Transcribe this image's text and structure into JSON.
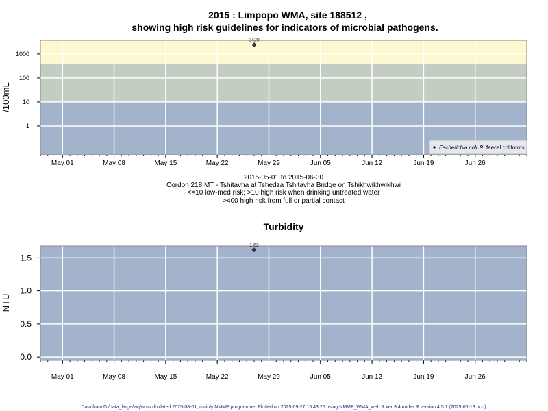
{
  "chart_data": [
    {
      "type": "scatter",
      "title": "2015 : Limpopo WMA, site 188512 ,",
      "subtitle": "showing high risk guidelines for indicators of microbial pathogens.",
      "ylabel": "/100mL",
      "yscale": "log",
      "yticks": [
        1,
        10,
        100,
        1000
      ],
      "ytick_labels": [
        "1",
        "10",
        "100",
        "1000"
      ],
      "ylim": [
        0.063,
        3700
      ],
      "xlim": [
        "2015-04-28",
        "2015-07-03"
      ],
      "xticks": [
        "2015-05-01",
        "2015-05-08",
        "2015-05-15",
        "2015-05-22",
        "2015-05-29",
        "2015-06-05",
        "2015-06-12",
        "2015-06-19",
        "2015-06-26"
      ],
      "xtick_labels": [
        "May 01",
        "May 08",
        "May 15",
        "May 22",
        "May 29",
        "Jun 05",
        "Jun 12",
        "Jun 19",
        "Jun 26"
      ],
      "grid": true,
      "bands": [
        {
          "from": 0.063,
          "to": 10,
          "color": "#a2b3cb"
        },
        {
          "from": 10,
          "to": 400,
          "color": "#c3cdc2"
        },
        {
          "from": 400,
          "to": 3700,
          "color": "#fdf8d0"
        }
      ],
      "series": [
        {
          "name": "Escherichia coli",
          "marker": "filled",
          "points": [
            {
              "x": "2015-05-27",
              "y": 2420,
              "label": "2420"
            }
          ]
        },
        {
          "name": "faecal coliforms",
          "marker": "open",
          "points": []
        }
      ],
      "legend": "bottom-right",
      "notes": [
        "2015-05-01 to 2015-06-30",
        "Cordon 218 MT - Tshitavha at Tshedza Tshitavha Bridge on Tshikhwikhwikhwi",
        "<=10 low-med risk; >10 high risk when drinking untreated water",
        ">400 high risk from full or partial contact"
      ]
    },
    {
      "type": "scatter",
      "title": "Turbidity",
      "ylabel": "NTU",
      "yticks": [
        0,
        0.5,
        1,
        1.5
      ],
      "ytick_labels": [
        "0.0",
        "0.5",
        "1.0",
        "1.5"
      ],
      "ylim": [
        -0.05,
        1.68
      ],
      "xlim": [
        "2015-04-28",
        "2015-07-03"
      ],
      "xticks": [
        "2015-05-01",
        "2015-05-08",
        "2015-05-15",
        "2015-05-22",
        "2015-05-29",
        "2015-06-05",
        "2015-06-12",
        "2015-06-19",
        "2015-06-26"
      ],
      "xtick_labels": [
        "May 01",
        "May 08",
        "May 15",
        "May 22",
        "May 29",
        "Jun 05",
        "Jun 12",
        "Jun 19",
        "Jun 26"
      ],
      "grid": true,
      "background": "#a2b3cb",
      "series": [
        {
          "points": [
            {
              "x": "2015-05-27",
              "y": 1.62,
              "label": "1.62"
            }
          ]
        }
      ]
    }
  ],
  "footer": "Data from D:/data_large/wq/wms.db dated 2025-08-01, mainly NMMP programme. Plotted on 2025-09-27 15:43:25 using NMMP_WMA_web.R ver 9.4 under R version 4.5.1 (2025-06-13 ucrt)"
}
